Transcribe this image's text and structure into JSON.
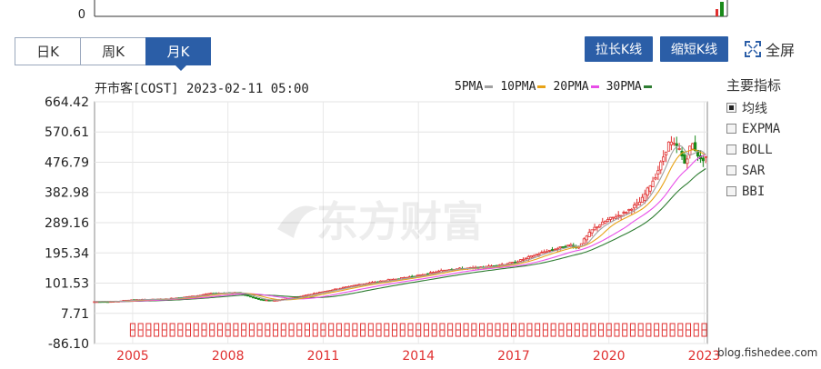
{
  "top_strip": {
    "zero_label": "0"
  },
  "tabs": [
    {
      "label": "日K",
      "active": false
    },
    {
      "label": "周K",
      "active": false
    },
    {
      "label": "月K",
      "active": true
    }
  ],
  "toolbar": {
    "stretch_label": "拉长K线",
    "shrink_label": "缩短K线",
    "fullscreen_label": "全屏"
  },
  "header": {
    "title": "开市客[COST] 2023-02-11 05:00"
  },
  "legend": [
    {
      "label": "5PMA",
      "color": "#a0a0a0"
    },
    {
      "label": "10PMA",
      "color": "#e8a317"
    },
    {
      "label": "20PMA",
      "color": "#e84ee8"
    },
    {
      "label": "30PMA",
      "color": "#2e7d32"
    }
  ],
  "indicators": {
    "title": "主要指标",
    "items": [
      {
        "label": "均线",
        "checked": true
      },
      {
        "label": "EXPMA",
        "checked": false
      },
      {
        "label": "BOLL",
        "checked": false
      },
      {
        "label": "SAR",
        "checked": false
      },
      {
        "label": "BBI",
        "checked": false
      }
    ]
  },
  "watermark": "东方财富",
  "credit": "blog.fishedee.com",
  "colors": {
    "up": "#e03030",
    "down": "#1a8a1a",
    "tab_active": "#2b5ea7",
    "axis_year": "#e03030",
    "marker": "#e03030"
  },
  "chart_data": {
    "type": "candlestick",
    "title": "开市客[COST] 2023-02-11 05:00",
    "y_ticks": [
      664.42,
      570.61,
      476.79,
      382.98,
      289.16,
      195.34,
      101.53,
      7.71,
      -86.1
    ],
    "ylim": [
      -86.1,
      664.42
    ],
    "x_ticks": [
      "2005",
      "2008",
      "2011",
      "2014",
      "2017",
      "2020",
      "2023"
    ],
    "x_range": [
      2003.8,
      2023.1
    ],
    "series_points": [
      [
        2003.8,
        44
      ],
      [
        2004.5,
        45
      ],
      [
        2005.0,
        50
      ],
      [
        2006.0,
        52
      ],
      [
        2007.0,
        62
      ],
      [
        2007.5,
        70
      ],
      [
        2008.3,
        72
      ],
      [
        2009.0,
        50
      ],
      [
        2009.5,
        48
      ],
      [
        2010.0,
        55
      ],
      [
        2011.0,
        75
      ],
      [
        2012.0,
        95
      ],
      [
        2013.0,
        110
      ],
      [
        2014.0,
        125
      ],
      [
        2015.0,
        145
      ],
      [
        2016.0,
        150
      ],
      [
        2017.0,
        165
      ],
      [
        2018.0,
        200
      ],
      [
        2018.8,
        220
      ],
      [
        2019.0,
        210
      ],
      [
        2019.5,
        270
      ],
      [
        2020.0,
        300
      ],
      [
        2020.5,
        320
      ],
      [
        2021.0,
        355
      ],
      [
        2021.5,
        440
      ],
      [
        2021.9,
        540
      ],
      [
        2022.2,
        520
      ],
      [
        2022.4,
        470
      ],
      [
        2022.6,
        540
      ],
      [
        2022.9,
        480
      ],
      [
        2023.1,
        500
      ]
    ],
    "ma_lags": {
      "ma5": 0.4,
      "ma10": 0.8,
      "ma20": 1.6,
      "ma30": 2.4
    }
  }
}
